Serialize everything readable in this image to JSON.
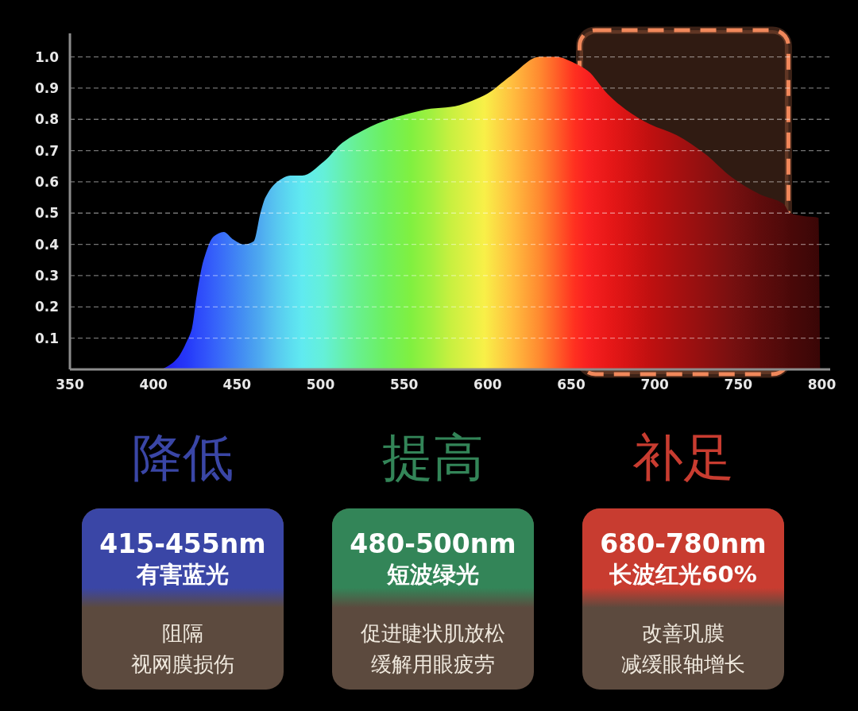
{
  "chart_data": [
    {
      "type": "area",
      "xlim": [
        350,
        805
      ],
      "ylim": [
        0,
        1.07
      ],
      "xticks": [
        350,
        400,
        450,
        500,
        550,
        600,
        650,
        700,
        750,
        800
      ],
      "yticks": [
        0.1,
        0.2,
        0.3,
        0.4,
        0.5,
        0.6,
        0.7,
        0.8,
        0.9,
        {
          "value": 1.0,
          "label": "1.0"
        }
      ],
      "grid": "y",
      "bands": [
        {
          "axis": "x",
          "from": 655,
          "to": 780,
          "color": "#f0875a"
        }
      ],
      "series": [
        {
          "type": "area",
          "x": [
            405,
            410,
            415,
            420,
            423,
            426,
            430,
            436,
            442,
            448,
            454,
            460,
            464,
            467,
            474,
            482,
            489,
            502,
            513,
            522,
            538,
            554,
            566,
            578,
            598,
            614,
            631,
            641,
            652,
            660,
            672,
            683,
            697,
            713,
            730,
            746,
            763,
            777,
            781,
            790,
            798,
            799
          ],
          "values": [
            0,
            0.015,
            0.04,
            0.09,
            0.13,
            0.24,
            0.35,
            0.425,
            0.44,
            0.415,
            0.4,
            0.41,
            0.5,
            0.55,
            0.6,
            0.62,
            0.62,
            0.665,
            0.725,
            0.755,
            0.795,
            0.82,
            0.834,
            0.84,
            0.877,
            0.94,
            1.0,
            1.0,
            0.98,
            0.955,
            0.88,
            0.83,
            0.785,
            0.75,
            0.69,
            0.615,
            0.56,
            0.53,
            0.5,
            0.49,
            0.485,
            0
          ],
          "colors": [
            "#2020e8",
            "#2222f0",
            "#2430f5",
            "#2638f8",
            "#2840fa",
            "#2c48fa",
            "#3050fa",
            "#3560fa",
            "#3a70f8",
            "#3f80f5",
            "#4490f2",
            "#4aa0f0",
            "#4eaaf0",
            "#52b4f0",
            "#58c8f0",
            "#5cdcf0",
            "#60eaf0",
            "#64f0d8",
            "#66f0b0",
            "#68f090",
            "#6cf060",
            "#80f040",
            "#a0f040",
            "#c8f040",
            "#f8f048",
            "#ffc040",
            "#ff8a30",
            "#ff6028",
            "#ff3020",
            "#f82020",
            "#e81818",
            "#d81414",
            "#c01010",
            "#a81010",
            "#901010",
            "#781010",
            "#600c0c",
            "#500a0a",
            "#4a0808",
            "#420808",
            "#3a0606",
            "#3a0606"
          ]
        }
      ]
    },
    {
      "type": "other",
      "colors": [
        "#3a46a6",
        "#338558",
        "#c83c30"
      ],
      "annotations": [
        "降低",
        "415-455nm",
        "有害蓝光",
        "阻隔",
        "视网膜损伤",
        "提高",
        "480-500nm",
        "短波绿光",
        "促进睫状肌放松",
        "缓解用眼疲劳",
        "补足",
        "680-780nm",
        "长波红光60%",
        "改善巩膜",
        "减缓眼轴增长"
      ]
    }
  ]
}
